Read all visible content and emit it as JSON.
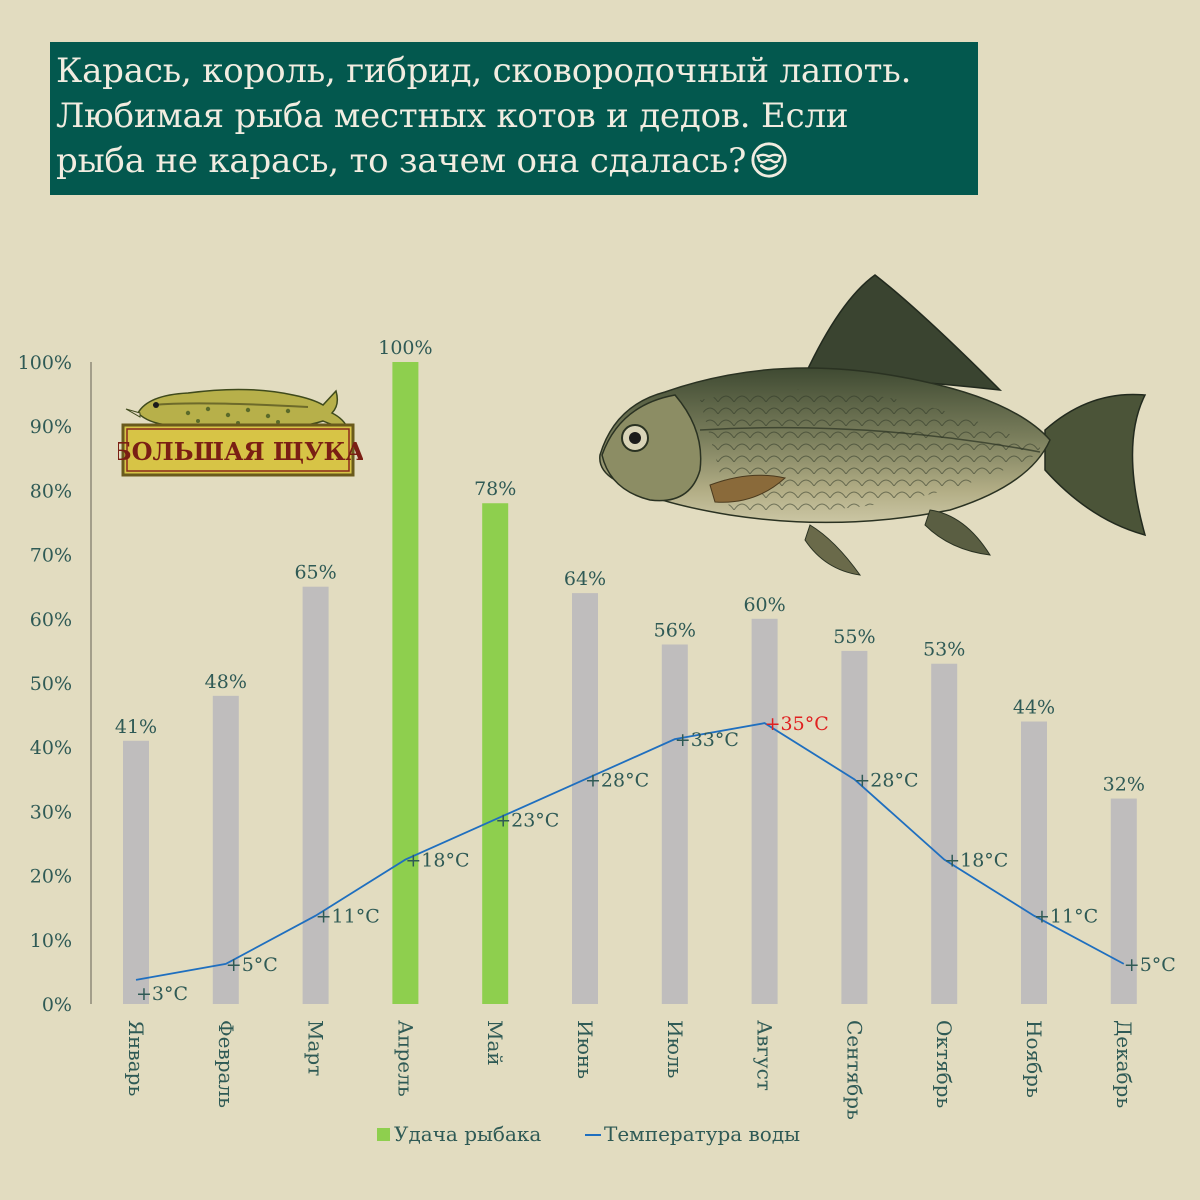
{
  "title": {
    "lines": [
      "Карась, король, гибрид, сковородочный лапоть.",
      "Любимая рыба местных котов и дедов. Если",
      "рыба не карась, то зачем она сдалась?"
    ],
    "emoji": "smiling-face-with-sunglasses-icon"
  },
  "logo": {
    "text": "БОЛЬШАЯ ЩУКА"
  },
  "colors": {
    "background": "#e2dcc0",
    "title_bg": "#03584e",
    "bar_normal": "#bfbdbd",
    "bar_highlight": "#8ecf4e",
    "line": "#1f6fbf",
    "text": "#2f5a55",
    "temp_max": "#e02020"
  },
  "chart_data": {
    "type": "bar",
    "categories": [
      "Январь",
      "Февраль",
      "Март",
      "Апрель",
      "Май",
      "Июнь",
      "Июль",
      "Август",
      "Сентябрь",
      "Октябрь",
      "Ноябрь",
      "Декабрь"
    ],
    "series": [
      {
        "name": "Удача рыбака",
        "type": "bar",
        "values": [
          41,
          48,
          65,
          100,
          78,
          64,
          56,
          60,
          55,
          53,
          44,
          32
        ],
        "labels": [
          "41%",
          "48%",
          "65%",
          "100%",
          "78%",
          "64%",
          "56%",
          "60%",
          "55%",
          "53%",
          "44%",
          "32%"
        ],
        "highlighted": [
          3,
          4
        ]
      },
      {
        "name": "Температура воды",
        "type": "line",
        "values": [
          3,
          5,
          11,
          18,
          23,
          28,
          33,
          35,
          28,
          18,
          11,
          5
        ],
        "labels": [
          "+3°C",
          "+5°C",
          "+11°C",
          "+18°C",
          "+23°C",
          "+28°C",
          "+33°C",
          "+35°C",
          "+28°C",
          "+18°C",
          "+11°C",
          "+5°C"
        ],
        "max_index": 7
      }
    ],
    "y_ticks": [
      "0%",
      "10%",
      "20%",
      "30%",
      "40%",
      "50%",
      "60%",
      "70%",
      "80%",
      "90%",
      "100%"
    ],
    "ylim": [
      0,
      100
    ],
    "temp_scale_max": 80,
    "grid": false,
    "legend_position": "bottom"
  }
}
